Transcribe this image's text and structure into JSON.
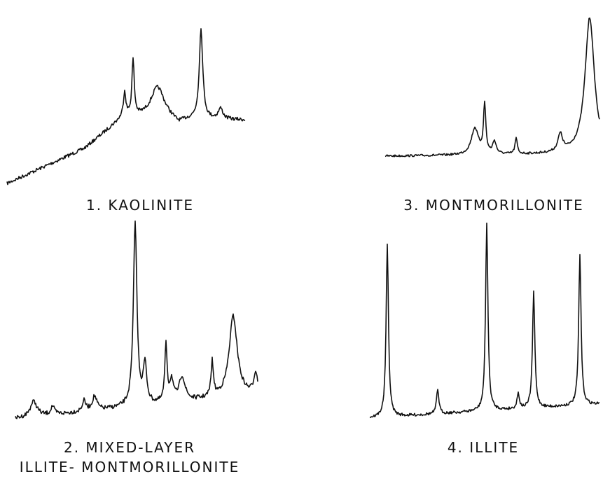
{
  "panels": [
    {
      "label": "1. KAOLINITE"
    },
    {
      "label": "3. MONTMORILLONITE"
    },
    {
      "label": "2. MIXED-LAYER",
      "sublabel": "ILLITE- MONTMORILLONITE"
    },
    {
      "label": "4. ILLITE"
    }
  ]
}
